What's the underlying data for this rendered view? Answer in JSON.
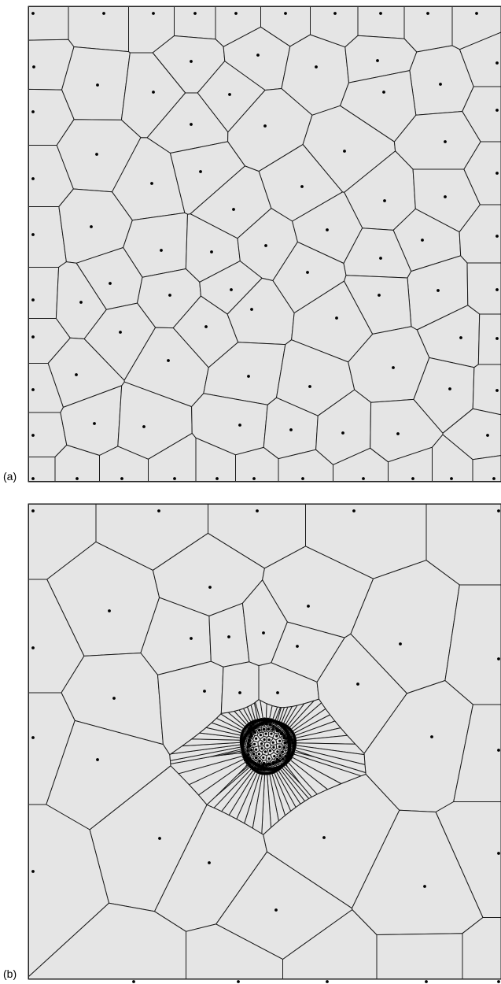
{
  "panels": [
    {
      "label": "(a)",
      "distribution": "uniform"
    },
    {
      "label": "(b)",
      "distribution": "clustered"
    }
  ],
  "colors": {
    "cell_fill": "#e5e5e5",
    "edge": "#1a1a1a",
    "site": "#000000",
    "border": "#222222"
  }
}
